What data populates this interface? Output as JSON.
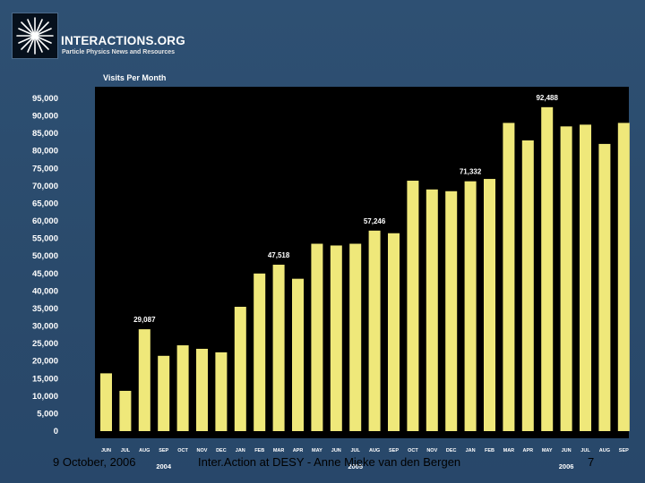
{
  "brand": {
    "name": "INTERACTIONS.ORG",
    "tagline": "Particle Physics News and Resources"
  },
  "chart_data": {
    "type": "bar",
    "title": "Visits Per Month",
    "xlabel": "",
    "ylabel": "",
    "ylim": [
      0,
      95000
    ],
    "yticks": [
      0,
      5000,
      10000,
      15000,
      20000,
      25000,
      30000,
      35000,
      40000,
      45000,
      50000,
      55000,
      60000,
      65000,
      70000,
      75000,
      80000,
      85000,
      90000,
      95000
    ],
    "ytick_labels": [
      "0",
      "5,000",
      "10,000",
      "15,000",
      "20,000",
      "25,000",
      "30,000",
      "35,000",
      "40,000",
      "45,000",
      "50,000",
      "55,000",
      "60,000",
      "65,000",
      "70,000",
      "75,000",
      "80,000",
      "85,000",
      "90,000",
      "95,000"
    ],
    "categories": [
      "JUN",
      "JUL",
      "AUG",
      "SEP",
      "OCT",
      "NOV",
      "DEC",
      "JAN",
      "FEB",
      "MAR",
      "APR",
      "MAY",
      "JUN",
      "JUL",
      "AUG",
      "SEP",
      "OCT",
      "NOV",
      "DEC",
      "JAN",
      "FEB",
      "MAR",
      "APR",
      "MAY",
      "JUN",
      "JUL",
      "AUG",
      "SEP"
    ],
    "values": [
      16500,
      11500,
      29087,
      21500,
      24500,
      23500,
      22500,
      35500,
      45000,
      47518,
      43500,
      53500,
      53000,
      53500,
      57246,
      56500,
      71500,
      69000,
      68500,
      71332,
      72000,
      88000,
      83000,
      92488,
      87000,
      87500,
      82000,
      88000
    ],
    "data_labels": [
      {
        "index": 2,
        "text": "29,087"
      },
      {
        "index": 9,
        "text": "47,518"
      },
      {
        "index": 14,
        "text": "57,246"
      },
      {
        "index": 19,
        "text": "71,332"
      },
      {
        "index": 23,
        "text": "92,488"
      }
    ],
    "year_labels": [
      {
        "index": 3,
        "text": "2004"
      },
      {
        "index": 13,
        "text": "2005"
      },
      {
        "index": 24,
        "text": "2006"
      }
    ],
    "bar_color": "#efe87a",
    "panel_color": "#000000",
    "axis_label_color": "#ffffff",
    "grid": false,
    "legend": "none"
  },
  "footer": {
    "date": "9 October, 2006",
    "center": "Inter.Action at DESY - Anne Mieke van den Bergen",
    "page": "7"
  }
}
